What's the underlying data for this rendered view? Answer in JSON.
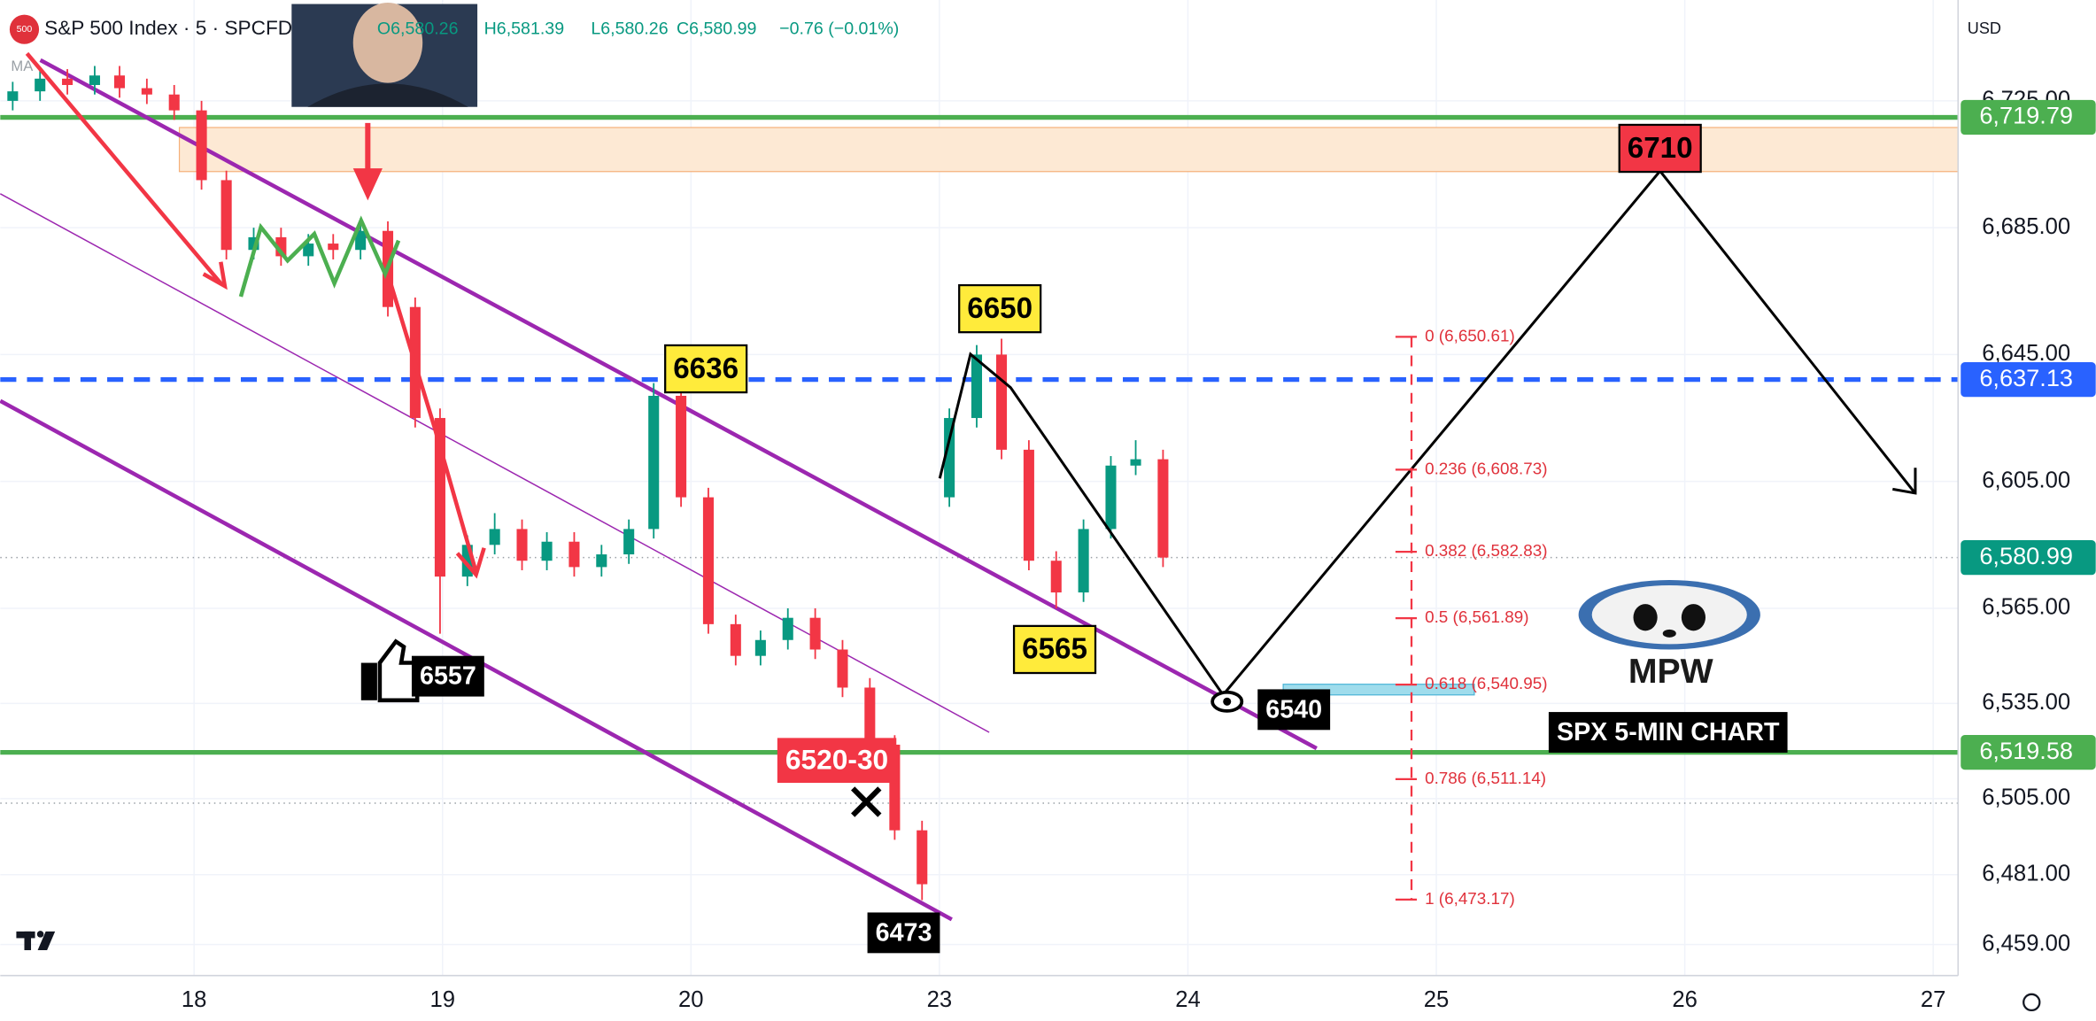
{
  "chart_data": {
    "type": "candlestick",
    "symbol": "S&P 500 Index · 5 · SPCFD",
    "ohlc_header": [
      "O6,580.26",
      "H6,581.39",
      "L6,580.26",
      "C6,580.99",
      "−0.76 (−0.01%)"
    ],
    "currency": "USD",
    "indicator": "MA",
    "up_color": "#089981",
    "down_color": "#f23645",
    "x": [
      0.27,
      0.38,
      0.49,
      0.6,
      0.7,
      0.81,
      0.92,
      1.03,
      1.13,
      1.24,
      1.35,
      1.46,
      1.56,
      1.67,
      1.78,
      1.89,
      1.99,
      2.1,
      2.21,
      2.32,
      2.42,
      2.53,
      2.64,
      2.75,
      2.85,
      2.96,
      3.07,
      3.18,
      3.28,
      3.39,
      3.5,
      3.61,
      3.72,
      3.82,
      3.93,
      4.04,
      4.15,
      4.25,
      4.36,
      4.47,
      4.58,
      4.69,
      4.79,
      4.9
    ],
    "open": [
      6725,
      6728,
      6732,
      6730,
      6733,
      6729,
      6727,
      6722,
      6700,
      6678,
      6682,
      6676,
      6680,
      6678,
      6684,
      6660,
      6625,
      6575,
      6585,
      6590,
      6580,
      6586,
      6578,
      6582,
      6590,
      6632,
      6600,
      6560,
      6550,
      6555,
      6562,
      6552,
      6540,
      6522,
      6495,
      6600,
      6625,
      6645,
      6615,
      6580,
      6570,
      6590,
      6610,
      6612
    ],
    "high": [
      6731,
      6735,
      6735,
      6736,
      6736,
      6732,
      6730,
      6725,
      6703,
      6685,
      6685,
      6683,
      6683,
      6688,
      6687,
      6663,
      6628,
      6588,
      6595,
      6593,
      6589,
      6589,
      6585,
      6593,
      6636,
      6635,
      6603,
      6563,
      6558,
      6565,
      6565,
      6555,
      6543,
      6525,
      6498,
      6628,
      6648,
      6650,
      6618,
      6583,
      6593,
      6613,
      6618,
      6615
    ],
    "low": [
      6722,
      6725,
      6727,
      6727,
      6726,
      6724,
      6719,
      6697,
      6675,
      6675,
      6673,
      6673,
      6675,
      6675,
      6657,
      6622,
      6557,
      6572,
      6582,
      6577,
      6577,
      6575,
      6575,
      6579,
      6587,
      6597,
      6557,
      6547,
      6547,
      6552,
      6549,
      6537,
      6519,
      6492,
      6473,
      6597,
      6622,
      6612,
      6577,
      6565,
      6567,
      6587,
      6607,
      6578
    ],
    "close": [
      6728,
      6732,
      6730,
      6733,
      6729,
      6727,
      6722,
      6700,
      6678,
      6682,
      6676,
      6680,
      6678,
      6684,
      6660,
      6625,
      6575,
      6585,
      6590,
      6580,
      6586,
      6578,
      6582,
      6590,
      6632,
      6600,
      6560,
      6550,
      6555,
      6562,
      6552,
      6540,
      6522,
      6495,
      6478,
      6625,
      6645,
      6615,
      6580,
      6570,
      6590,
      6610,
      6612,
      6581
    ],
    "xlim": [
      0.22,
      8.1
    ],
    "xticks": [
      {
        "value": 1,
        "label": "18"
      },
      {
        "value": 2,
        "label": "19"
      },
      {
        "value": 3,
        "label": "20"
      },
      {
        "value": 4,
        "label": "23"
      },
      {
        "value": 5,
        "label": "24"
      },
      {
        "value": 6,
        "label": "25"
      },
      {
        "value": 7,
        "label": "26"
      },
      {
        "value": 8,
        "label": "27"
      }
    ],
    "ylim": [
      6449.2,
      6756.8
    ],
    "yticks": [
      {
        "value": 6725,
        "label": "6,725.00"
      },
      {
        "value": 6685,
        "label": "6,685.00"
      },
      {
        "value": 6645,
        "label": "6,645.00"
      },
      {
        "value": 6605,
        "label": "6,605.00"
      },
      {
        "value": 6565,
        "label": "6,565.00"
      },
      {
        "value": 6535,
        "label": "6,535.00"
      },
      {
        "value": 6505,
        "label": "6,505.00"
      },
      {
        "value": 6481,
        "label": "6,481.00"
      },
      {
        "value": 6459,
        "label": "6,459.00"
      }
    ],
    "price_lines": [
      {
        "value": 6719.79,
        "label": "6,719.79",
        "color": "#4caf50",
        "style": "solid"
      },
      {
        "value": 6637.13,
        "label": "6,637.13",
        "color": "#2962ff",
        "style": "dashed"
      },
      {
        "value": 6580.99,
        "label": "6,580.99",
        "color": "#089981",
        "style": "dotted"
      },
      {
        "value": 6519.58,
        "label": "6,519.58",
        "color": "#4caf50",
        "style": "solid"
      }
    ],
    "zone": [
      6702.7,
      6716.6
    ],
    "fib_levels": [
      {
        "value": 6650.61,
        "label": "0 (6,650.61)"
      },
      {
        "value": 6608.73,
        "label": "0.236 (6,608.73)"
      },
      {
        "value": 6582.83,
        "label": "0.382 (6,582.83)"
      },
      {
        "value": 6561.89,
        "label": "0.5 (6,561.89)"
      },
      {
        "value": 6540.95,
        "label": "0.618 (6,540.95)"
      },
      {
        "value": 6511.14,
        "label": "0.786 (6,511.14)"
      },
      {
        "value": 6473.17,
        "label": "1 (6,473.17)"
      }
    ],
    "annotations": [
      "6710",
      "6650",
      "6636",
      "6565",
      "6557",
      "6540",
      "6473",
      "6520-30",
      "MPW",
      "SPX 5-MIN CHART"
    ]
  }
}
